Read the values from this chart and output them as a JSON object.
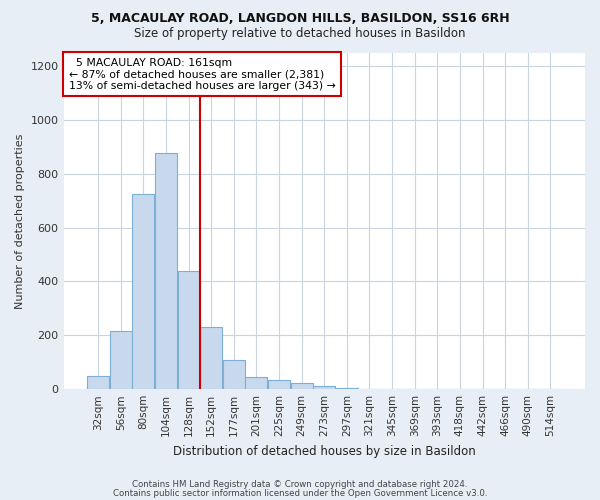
{
  "title1": "5, MACAULAY ROAD, LANGDON HILLS, BASILDON, SS16 6RH",
  "title2": "Size of property relative to detached houses in Basildon",
  "xlabel": "Distribution of detached houses by size in Basildon",
  "ylabel": "Number of detached properties",
  "bar_color": "#c9d9ed",
  "bar_edge_color": "#7bafd4",
  "categories": [
    "32sqm",
    "56sqm",
    "80sqm",
    "104sqm",
    "128sqm",
    "152sqm",
    "177sqm",
    "201sqm",
    "225sqm",
    "249sqm",
    "273sqm",
    "297sqm",
    "321sqm",
    "345sqm",
    "369sqm",
    "393sqm",
    "418sqm",
    "442sqm",
    "466sqm",
    "490sqm",
    "514sqm"
  ],
  "values": [
    50,
    215,
    725,
    878,
    440,
    230,
    108,
    47,
    35,
    22,
    12,
    5,
    0,
    0,
    0,
    0,
    0,
    0,
    0,
    0,
    0
  ],
  "ylim": [
    0,
    1250
  ],
  "yticks": [
    0,
    200,
    400,
    600,
    800,
    1000,
    1200
  ],
  "annotation_line1": "5 MACAULAY ROAD: 161sqm",
  "annotation_line2": "← 87% of detached houses are smaller (2,381)",
  "annotation_line3": "13% of semi-detached houses are larger (343) →",
  "footer1": "Contains HM Land Registry data © Crown copyright and database right 2024.",
  "footer2": "Contains public sector information licensed under the Open Government Licence v3.0.",
  "background_color": "#e8eef5",
  "plot_bg_color": "#ffffff",
  "grid_color": "#c8d4e0",
  "annotation_box_color": "#ffffff",
  "annotation_box_edge": "#cc0000",
  "vline_color": "#cc0000",
  "vline_x": 4.5
}
